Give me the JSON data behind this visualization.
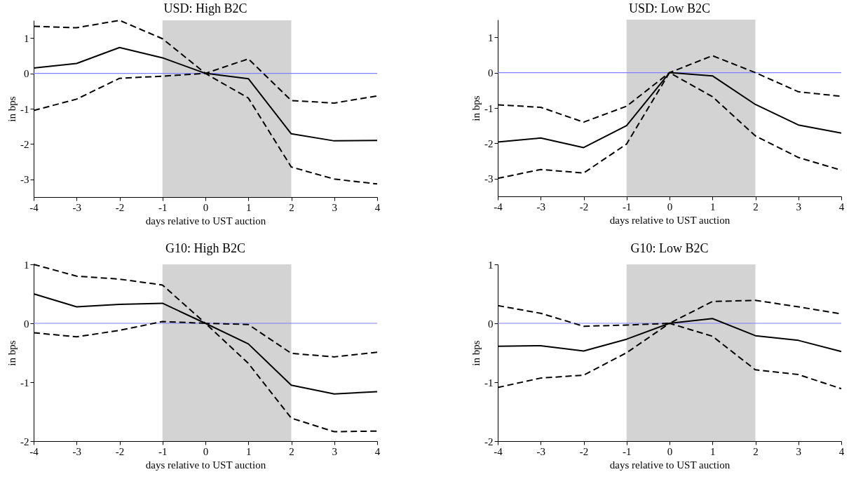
{
  "chart_data": [
    {
      "type": "line",
      "title": "USD: High B2C",
      "xlabel": "days relative to UST auction",
      "ylabel": "in bps",
      "x": [
        -4,
        -3,
        -2,
        -1,
        0,
        1,
        2,
        3,
        4
      ],
      "xlim": [
        -4,
        4
      ],
      "xticks": [
        -4,
        -3,
        -2,
        -1,
        0,
        1,
        2,
        3,
        4
      ],
      "ylim": [
        -3.5,
        1.5
      ],
      "yticks": [
        -3,
        -2,
        -1,
        0,
        1
      ],
      "grid": false,
      "series": [
        {
          "color": "#000000",
          "line_style": "solid",
          "values": [
            0.15,
            0.28,
            0.73,
            0.44,
            0,
            -0.15,
            -1.71,
            -1.91,
            -1.9
          ]
        },
        {
          "color": "#000000",
          "line_style": "dashed",
          "values": [
            1.33,
            1.29,
            1.5,
            0.98,
            0,
            0.41,
            -0.77,
            -0.84,
            -0.64
          ]
        },
        {
          "color": "#000000",
          "line_style": "dashed",
          "values": [
            -1.05,
            -0.73,
            -0.14,
            -0.08,
            0,
            -0.7,
            -2.65,
            -2.99,
            -3.13
          ]
        }
      ],
      "ref_lines": [
        {
          "axis": "y",
          "value": 0,
          "color": "#7f7fff"
        }
      ],
      "bands": [
        {
          "axis": "x",
          "from": -1,
          "to": 2,
          "color": "#d3d3d3"
        }
      ]
    },
    {
      "type": "line",
      "title": "USD: Low B2C",
      "xlabel": "days relative to UST auction",
      "ylabel": "in bps",
      "x": [
        -4,
        -3,
        -2,
        -1,
        0,
        1,
        2,
        3,
        4
      ],
      "xlim": [
        -4,
        4
      ],
      "xticks": [
        -4,
        -3,
        -2,
        -1,
        0,
        1,
        2,
        3,
        4
      ],
      "ylim": [
        -3.5,
        1.5
      ],
      "yticks": [
        -3,
        -2,
        -1,
        0,
        1
      ],
      "grid": false,
      "series": [
        {
          "color": "#000000",
          "line_style": "solid",
          "values": [
            -1.96,
            -1.85,
            -2.12,
            -1.5,
            0,
            -0.09,
            -0.9,
            -1.48,
            -1.71
          ]
        },
        {
          "color": "#000000",
          "line_style": "dashed",
          "values": [
            -0.91,
            -0.98,
            -1.4,
            -0.95,
            0,
            0.48,
            0,
            -0.54,
            -0.67
          ]
        },
        {
          "color": "#000000",
          "line_style": "dashed",
          "values": [
            -2.99,
            -2.74,
            -2.84,
            -2.02,
            0,
            -0.68,
            -1.79,
            -2.4,
            -2.76
          ]
        }
      ],
      "ref_lines": [
        {
          "axis": "y",
          "value": 0,
          "color": "#7f7fff"
        }
      ],
      "bands": [
        {
          "axis": "x",
          "from": -1,
          "to": 2,
          "color": "#d3d3d3"
        }
      ]
    },
    {
      "type": "line",
      "title": "G10: High B2C",
      "xlabel": "days relative to UST auction",
      "ylabel": "in bps",
      "x": [
        -4,
        -3,
        -2,
        -1,
        0,
        1,
        2,
        3,
        4
      ],
      "xlim": [
        -4,
        4
      ],
      "xticks": [
        -4,
        -3,
        -2,
        -1,
        0,
        1,
        2,
        3,
        4
      ],
      "ylim": [
        -2,
        1
      ],
      "yticks": [
        -2,
        -1,
        0,
        1
      ],
      "grid": false,
      "series": [
        {
          "color": "#000000",
          "line_style": "solid",
          "values": [
            0.5,
            0.28,
            0.32,
            0.34,
            0,
            -0.35,
            -1.05,
            -1.2,
            -1.16
          ]
        },
        {
          "color": "#000000",
          "line_style": "dashed",
          "values": [
            1.0,
            0.8,
            0.75,
            0.65,
            0,
            -0.02,
            -0.51,
            -0.57,
            -0.49
          ]
        },
        {
          "color": "#000000",
          "line_style": "dashed",
          "values": [
            -0.16,
            -0.23,
            -0.12,
            0.03,
            0,
            -0.68,
            -1.61,
            -1.84,
            -1.83
          ]
        }
      ],
      "ref_lines": [
        {
          "axis": "y",
          "value": 0,
          "color": "#7f7fff"
        }
      ],
      "bands": [
        {
          "axis": "x",
          "from": -1,
          "to": 2,
          "color": "#d3d3d3"
        }
      ]
    },
    {
      "type": "line",
      "title": "G10: Low B2C",
      "xlabel": "days relative to UST auction",
      "ylabel": "in bps",
      "x": [
        -4,
        -3,
        -2,
        -1,
        0,
        1,
        2,
        3,
        4
      ],
      "xlim": [
        -4,
        4
      ],
      "xticks": [
        -4,
        -3,
        -2,
        -1,
        0,
        1,
        2,
        3,
        4
      ],
      "ylim": [
        -2,
        1
      ],
      "yticks": [
        -2,
        -1,
        0,
        1
      ],
      "grid": false,
      "series": [
        {
          "color": "#000000",
          "line_style": "solid",
          "values": [
            -0.39,
            -0.38,
            -0.47,
            -0.27,
            0,
            0.08,
            -0.21,
            -0.29,
            -0.48
          ]
        },
        {
          "color": "#000000",
          "line_style": "dashed",
          "values": [
            0.3,
            0.17,
            -0.05,
            -0.03,
            0,
            0.37,
            0.39,
            0.28,
            0.16
          ]
        },
        {
          "color": "#000000",
          "line_style": "dashed",
          "values": [
            -1.09,
            -0.93,
            -0.88,
            -0.5,
            0,
            -0.22,
            -0.79,
            -0.87,
            -1.11
          ]
        }
      ],
      "ref_lines": [
        {
          "axis": "y",
          "value": 0,
          "color": "#7f7fff"
        }
      ],
      "bands": [
        {
          "axis": "x",
          "from": -1,
          "to": 2,
          "color": "#d3d3d3"
        }
      ]
    }
  ]
}
